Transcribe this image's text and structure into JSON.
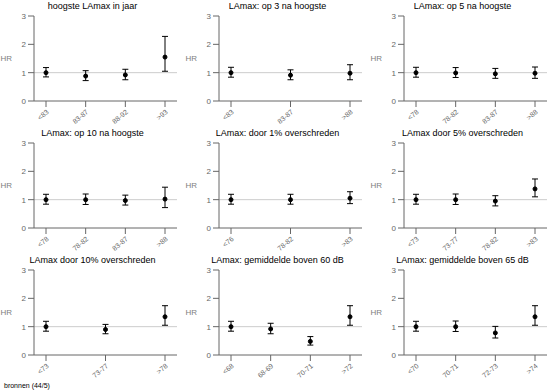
{
  "chart_data": [
    {
      "type": "scatter",
      "title": "hoogste LAmax in jaar",
      "ylabel": "HR",
      "categories": [
        "<83",
        "83-87",
        "88-92",
        ">93"
      ],
      "values": [
        1.0,
        0.88,
        0.92,
        1.55
      ],
      "lower": [
        0.85,
        0.72,
        0.75,
        1.05
      ],
      "upper": [
        1.18,
        1.07,
        1.12,
        2.28
      ],
      "ref_line": 1.0,
      "color": "black",
      "ylim": [
        0,
        3
      ],
      "yticks": [
        0,
        1,
        2,
        3
      ]
    },
    {
      "type": "scatter",
      "title": "LAmax: op 3 na hoogste",
      "ylabel": "HR",
      "categories": [
        "<83",
        "83-87",
        ">88"
      ],
      "values": [
        1.0,
        0.91,
        0.98
      ],
      "lower": [
        0.84,
        0.75,
        0.75
      ],
      "upper": [
        1.19,
        1.1,
        1.28
      ],
      "ref_line": 1.0,
      "color": "black",
      "ylim": [
        0,
        3
      ],
      "yticks": [
        0,
        1,
        2,
        3
      ]
    },
    {
      "type": "scatter",
      "title": "LAmax: op 5 na hoogste",
      "ylabel": "HR",
      "categories": [
        "<78",
        "78-82",
        "83-87",
        ">88"
      ],
      "values": [
        1.0,
        0.99,
        0.96,
        0.98
      ],
      "lower": [
        0.84,
        0.83,
        0.8,
        0.8
      ],
      "upper": [
        1.19,
        1.18,
        1.15,
        1.2
      ],
      "ref_line": 1.0,
      "color": "black",
      "ylim": [
        0,
        3
      ],
      "yticks": [
        0,
        1,
        2,
        3
      ]
    },
    {
      "type": "scatter",
      "title": "LAmax: op 10 na hoogste",
      "ylabel": "HR",
      "categories": [
        "<78",
        "78-82",
        "83-87",
        ">88"
      ],
      "values": [
        1.0,
        1.0,
        0.97,
        1.02
      ],
      "lower": [
        0.84,
        0.83,
        0.81,
        0.72
      ],
      "upper": [
        1.19,
        1.2,
        1.16,
        1.44
      ],
      "ref_line": 1.0,
      "color": "black",
      "ylim": [
        0,
        3
      ],
      "yticks": [
        0,
        1,
        2,
        3
      ]
    },
    {
      "type": "scatter",
      "title": "LAmax: door 1% overschreden",
      "ylabel": "HR",
      "categories": [
        "<76",
        "78-82",
        ">83"
      ],
      "values": [
        1.0,
        1.0,
        1.05
      ],
      "lower": [
        0.84,
        0.84,
        0.86
      ],
      "upper": [
        1.19,
        1.19,
        1.28
      ],
      "ref_line": 1.0,
      "color": "black",
      "ylim": [
        0,
        3
      ],
      "yticks": [
        0,
        1,
        2,
        3
      ]
    },
    {
      "type": "scatter",
      "title": "LAmax door 5% overschreden",
      "ylabel": "HR",
      "categories": [
        "<73",
        "73-77",
        "78-82",
        ">83"
      ],
      "values": [
        1.0,
        1.0,
        0.95,
        1.38
      ],
      "lower": [
        0.84,
        0.83,
        0.78,
        1.1
      ],
      "upper": [
        1.19,
        1.2,
        1.14,
        1.73
      ],
      "ref_line": 1.0,
      "color": "black",
      "ylim": [
        0,
        3
      ],
      "yticks": [
        0,
        1,
        2,
        3
      ]
    },
    {
      "type": "scatter",
      "title": "LAmax door 10% overschreden",
      "ylabel": "HR",
      "categories": [
        "<73",
        "73-77",
        ">78"
      ],
      "values": [
        1.0,
        0.9,
        1.35
      ],
      "lower": [
        0.84,
        0.75,
        1.05
      ],
      "upper": [
        1.19,
        1.08,
        1.74
      ],
      "ref_line": 1.0,
      "color": "black",
      "ylim": [
        0,
        3
      ],
      "yticks": [
        0,
        1,
        2,
        3
      ]
    },
    {
      "type": "scatter",
      "title": "LAmax: gemiddelde boven 60 dB",
      "ylabel": "HR",
      "categories": [
        "<68",
        "68-69",
        "70-71",
        ">72"
      ],
      "values": [
        1.0,
        0.92,
        0.48,
        1.35
      ],
      "lower": [
        0.84,
        0.75,
        0.35,
        1.05
      ],
      "upper": [
        1.19,
        1.12,
        0.65,
        1.74
      ],
      "ref_line": 1.0,
      "color": "black",
      "ylim": [
        0,
        3
      ],
      "yticks": [
        0,
        1,
        2,
        3
      ]
    },
    {
      "type": "scatter",
      "title": "LAmax: gemiddelde boven 65 dB",
      "ylabel": "HR",
      "categories": [
        "<70",
        "70-71",
        "72-73",
        ">74"
      ],
      "values": [
        1.0,
        1.0,
        0.78,
        1.35
      ],
      "lower": [
        0.84,
        0.83,
        0.6,
        1.05
      ],
      "upper": [
        1.19,
        1.2,
        1.01,
        1.74
      ],
      "ref_line": 1.0,
      "color": "black",
      "ylim": [
        0,
        3
      ],
      "yticks": [
        0,
        1,
        2,
        3
      ]
    }
  ],
  "footnote": "bronnen (44/5)"
}
